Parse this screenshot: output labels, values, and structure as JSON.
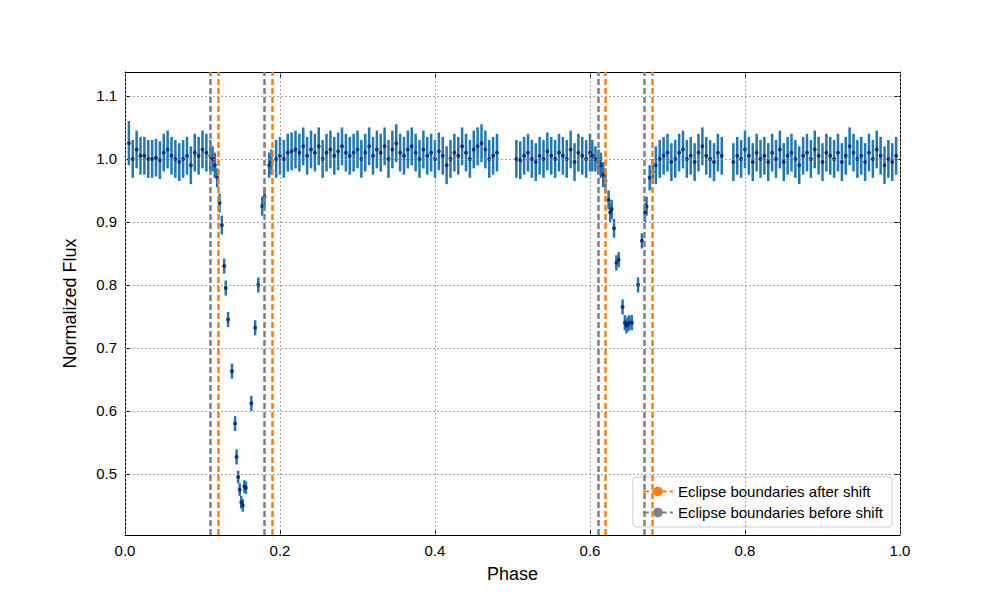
{
  "chart_data": {
    "type": "scatter",
    "x_label": "Phase",
    "y_label": "Normalized Flux",
    "xlim": [
      0,
      1
    ],
    "ylim": [
      0.403,
      1.138
    ],
    "xticks": [
      {
        "value": 0,
        "label": "0.0"
      },
      0.2,
      0.4,
      0.6,
      0.8,
      {
        "value": 1,
        "label": "1.0"
      }
    ],
    "yticks": [
      0.5,
      0.6,
      0.7,
      0.8,
      0.9,
      {
        "value": 1,
        "label": "1.0"
      },
      1.1
    ],
    "grid": true,
    "legend": "lower right",
    "series": [
      {
        "type": "scatter",
        "color": "#1f77b4",
        "marker": "circle",
        "x": [
          0.005,
          0.01,
          0.015,
          0.02,
          0.025,
          0.03,
          0.035,
          0.04,
          0.045,
          0.05,
          0.055,
          0.06,
          0.065,
          0.07,
          0.075,
          0.08,
          0.085,
          0.09,
          0.095,
          0.1,
          0.105,
          0.11,
          0.113,
          0.116,
          0.119,
          0.122,
          0.125,
          0.128,
          0.13,
          0.133,
          0.138,
          0.142,
          0.144,
          0.146,
          0.148,
          0.15,
          0.152,
          0.154,
          0.156,
          0.163,
          0.168,
          0.172,
          0.177,
          0.18,
          0.186,
          0.189,
          0.195,
          0.2,
          0.205,
          0.21,
          0.215,
          0.22,
          0.225,
          0.23,
          0.235,
          0.24,
          0.245,
          0.25,
          0.255,
          0.26,
          0.265,
          0.27,
          0.275,
          0.28,
          0.285,
          0.29,
          0.295,
          0.3,
          0.305,
          0.31,
          0.315,
          0.32,
          0.325,
          0.33,
          0.335,
          0.34,
          0.345,
          0.35,
          0.355,
          0.36,
          0.365,
          0.37,
          0.375,
          0.38,
          0.385,
          0.39,
          0.395,
          0.4,
          0.405,
          0.41,
          0.415,
          0.42,
          0.425,
          0.43,
          0.435,
          0.44,
          0.445,
          0.45,
          0.455,
          0.46,
          0.465,
          0.47,
          0.475,
          0.48,
          0.505,
          0.51,
          0.515,
          0.52,
          0.525,
          0.53,
          0.535,
          0.54,
          0.545,
          0.55,
          0.555,
          0.56,
          0.565,
          0.57,
          0.575,
          0.58,
          0.585,
          0.59,
          0.595,
          0.6,
          0.603,
          0.607,
          0.611,
          0.614,
          0.617,
          0.62,
          0.624,
          0.626,
          0.628,
          0.631,
          0.634,
          0.637,
          0.642,
          0.645,
          0.647,
          0.649,
          0.651,
          0.654,
          0.662,
          0.667,
          0.671,
          0.673,
          0.677,
          0.681,
          0.685,
          0.69,
          0.695,
          0.7,
          0.705,
          0.71,
          0.715,
          0.72,
          0.725,
          0.73,
          0.735,
          0.74,
          0.745,
          0.75,
          0.755,
          0.76,
          0.765,
          0.77,
          0.785,
          0.79,
          0.795,
          0.8,
          0.805,
          0.81,
          0.815,
          0.82,
          0.825,
          0.83,
          0.835,
          0.84,
          0.845,
          0.85,
          0.855,
          0.86,
          0.865,
          0.87,
          0.875,
          0.88,
          0.885,
          0.89,
          0.895,
          0.9,
          0.905,
          0.91,
          0.915,
          0.92,
          0.925,
          0.93,
          0.935,
          0.94,
          0.945,
          0.95,
          0.955,
          0.96,
          0.965,
          0.97,
          0.975,
          0.98,
          0.985,
          0.99,
          0.995
        ],
        "values": [
          1.025,
          1.0,
          1.015,
          1.005,
          1.005,
          1.0,
          1.0,
          1.002,
          0.998,
          1.01,
          1.015,
          1.005,
          1.0,
          0.995,
          1.0,
          1.005,
          0.99,
          1.01,
          1.005,
          1.015,
          1.01,
          1.005,
          1.0,
          0.99,
          0.97,
          0.93,
          0.895,
          0.83,
          0.795,
          0.745,
          0.663,
          0.58,
          0.527,
          0.495,
          0.475,
          0.455,
          0.45,
          0.48,
          0.478,
          0.612,
          0.732,
          0.8,
          0.925,
          0.94,
          0.99,
          0.995,
          1.0,
          1.005,
          1.0,
          1.01,
          1.012,
          1.015,
          1.01,
          1.02,
          1.005,
          1.015,
          1.01,
          1.02,
          1.0,
          1.01,
          1.015,
          1.005,
          1.012,
          1.02,
          1.01,
          1.005,
          1.01,
          1.015,
          1.0,
          1.01,
          1.02,
          1.005,
          1.015,
          1.01,
          1.02,
          1.0,
          1.015,
          1.025,
          1.01,
          1.005,
          1.015,
          1.02,
          1.01,
          1.0,
          1.015,
          1.005,
          1.01,
          1.0,
          1.012,
          1.005,
          0.99,
          1.0,
          1.01,
          1.005,
          1.02,
          1.01,
          1.0,
          1.015,
          1.02,
          1.025,
          1.015,
          1.0,
          1.005,
          1.01,
          1.0,
          0.998,
          1.005,
          1.01,
          1.0,
          0.995,
          1.005,
          1.0,
          1.012,
          1.005,
          1.0,
          1.01,
          1.005,
          1.0,
          1.015,
          0.995,
          1.01,
          1.005,
          1.0,
          1.01,
          1.005,
          1.0,
          0.995,
          0.99,
          0.975,
          0.965,
          0.935,
          0.915,
          0.92,
          0.89,
          0.835,
          0.84,
          0.765,
          0.74,
          0.735,
          0.738,
          0.74,
          0.74,
          0.8,
          0.87,
          0.915,
          0.925,
          0.97,
          0.98,
          0.99,
          1.0,
          1.005,
          1.01,
          0.995,
          1.0,
          1.01,
          1.015,
          1.0,
          1.005,
          0.995,
          1.01,
          1.02,
          1.005,
          1.0,
          0.995,
          1.01,
          1.005,
          0.995,
          1.005,
          1.0,
          1.015,
          1.005,
          0.995,
          1.01,
          1.0,
          1.005,
          0.995,
          1.01,
          1.0,
          1.015,
          0.995,
          1.005,
          1.01,
          1.0,
          0.99,
          1.005,
          1.01,
          1.0,
          1.015,
          1.005,
          0.995,
          1.01,
          1.005,
          1.0,
          1.01,
          0.995,
          1.005,
          1.02,
          1.01,
          1.0,
          1.005,
          0.995,
          1.01,
          1.0,
          1.015,
          1.005,
          0.99,
          1.0,
          0.995,
          1.005
        ],
        "errors": [
          0.035,
          0.03,
          0.03,
          0.03,
          0.03,
          0.03,
          0.03,
          0.03,
          0.03,
          0.03,
          0.03,
          0.03,
          0.03,
          0.03,
          0.03,
          0.03,
          0.03,
          0.03,
          0.03,
          0.03,
          0.03,
          0.025,
          0.02,
          0.02,
          0.015,
          0.015,
          0.015,
          0.012,
          0.012,
          0.012,
          0.012,
          0.012,
          0.012,
          0.01,
          0.01,
          0.01,
          0.01,
          0.01,
          0.01,
          0.012,
          0.012,
          0.012,
          0.015,
          0.015,
          0.02,
          0.02,
          0.03,
          0.03,
          0.03,
          0.03,
          0.03,
          0.03,
          0.03,
          0.03,
          0.03,
          0.03,
          0.03,
          0.03,
          0.03,
          0.03,
          0.03,
          0.03,
          0.03,
          0.03,
          0.03,
          0.03,
          0.03,
          0.03,
          0.03,
          0.03,
          0.03,
          0.03,
          0.03,
          0.03,
          0.03,
          0.03,
          0.03,
          0.03,
          0.03,
          0.03,
          0.03,
          0.03,
          0.03,
          0.03,
          0.03,
          0.03,
          0.03,
          0.03,
          0.03,
          0.03,
          0.03,
          0.03,
          0.03,
          0.03,
          0.03,
          0.03,
          0.03,
          0.03,
          0.03,
          0.03,
          0.03,
          0.03,
          0.03,
          0.03,
          0.03,
          0.03,
          0.03,
          0.03,
          0.03,
          0.03,
          0.03,
          0.03,
          0.03,
          0.03,
          0.03,
          0.03,
          0.03,
          0.03,
          0.03,
          0.03,
          0.03,
          0.03,
          0.03,
          0.03,
          0.025,
          0.02,
          0.02,
          0.02,
          0.02,
          0.02,
          0.015,
          0.015,
          0.015,
          0.015,
          0.012,
          0.012,
          0.012,
          0.012,
          0.012,
          0.012,
          0.012,
          0.012,
          0.012,
          0.012,
          0.015,
          0.015,
          0.02,
          0.02,
          0.03,
          0.03,
          0.03,
          0.03,
          0.03,
          0.03,
          0.03,
          0.03,
          0.03,
          0.03,
          0.03,
          0.03,
          0.03,
          0.03,
          0.03,
          0.03,
          0.03,
          0.03,
          0.03,
          0.03,
          0.03,
          0.03,
          0.03,
          0.03,
          0.03,
          0.03,
          0.03,
          0.03,
          0.03,
          0.03,
          0.03,
          0.03,
          0.03,
          0.03,
          0.03,
          0.03,
          0.03,
          0.03,
          0.03,
          0.03,
          0.03,
          0.03,
          0.03,
          0.03,
          0.03,
          0.03,
          0.03,
          0.03,
          0.03,
          0.03,
          0.03,
          0.03,
          0.03,
          0.03,
          0.03,
          0.03,
          0.03,
          0.03,
          0.03,
          0.03,
          0.03
        ]
      },
      {
        "name": "Eclipse boundaries after shift",
        "type": "vline",
        "color": "#ff7f0e",
        "line_style": "dashed",
        "x": [
          0.116,
          0.188,
          0.62,
          0.684
        ]
      },
      {
        "name": "Eclipse boundaries before shift",
        "type": "vline",
        "color": "#808080",
        "line_style": "dashed",
        "x": [
          0.107,
          0.178,
          0.611,
          0.673
        ]
      }
    ]
  }
}
